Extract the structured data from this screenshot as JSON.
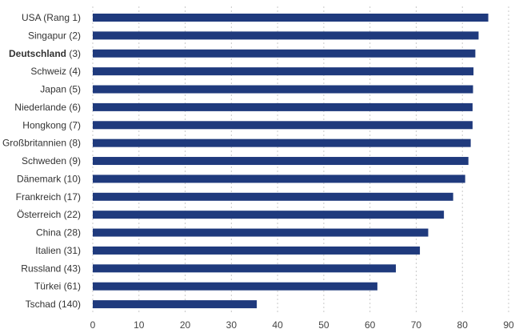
{
  "chart_data": {
    "type": "bar",
    "orientation": "horizontal",
    "title": "",
    "xlabel": "",
    "ylabel": "",
    "xlim": [
      0,
      90
    ],
    "xticks": [
      0,
      10,
      20,
      30,
      40,
      50,
      60,
      70,
      80,
      90
    ],
    "grid": "vertical dashed",
    "bar_color": "#1f3a7d",
    "highlight_label": "Deutschland",
    "categories": [
      {
        "name": "USA",
        "suffix": " (Rang 1)",
        "value": 85.6
      },
      {
        "name": "Singapur",
        "suffix": " (2)",
        "value": 83.5
      },
      {
        "name": "Deutschland",
        "suffix": " (3)",
        "value": 82.8
      },
      {
        "name": "Schweiz",
        "suffix": " (4)",
        "value": 82.4
      },
      {
        "name": "Japan",
        "suffix": " (5)",
        "value": 82.3
      },
      {
        "name": "Niederlande",
        "suffix": " (6)",
        "value": 82.2
      },
      {
        "name": "Hongkong",
        "suffix": " (7)",
        "value": 82.2
      },
      {
        "name": "Großbritannien",
        "suffix": " (8)",
        "value": 81.8
      },
      {
        "name": "Schweden",
        "suffix": " (9)",
        "value": 81.3
      },
      {
        "name": "Dänemark",
        "suffix": " (10)",
        "value": 80.6
      },
      {
        "name": "Frankreich",
        "suffix": " (17)",
        "value": 78.0
      },
      {
        "name": "Österreich",
        "suffix": " (22)",
        "value": 76.0
      },
      {
        "name": "China",
        "suffix": " (28)",
        "value": 72.6
      },
      {
        "name": "Italien",
        "suffix": " (31)",
        "value": 70.8
      },
      {
        "name": "Russland",
        "suffix": " (43)",
        "value": 65.6
      },
      {
        "name": "Türkei",
        "suffix": " (61)",
        "value": 61.6
      },
      {
        "name": "Tschad",
        "suffix": " (140)",
        "value": 35.5
      }
    ]
  }
}
